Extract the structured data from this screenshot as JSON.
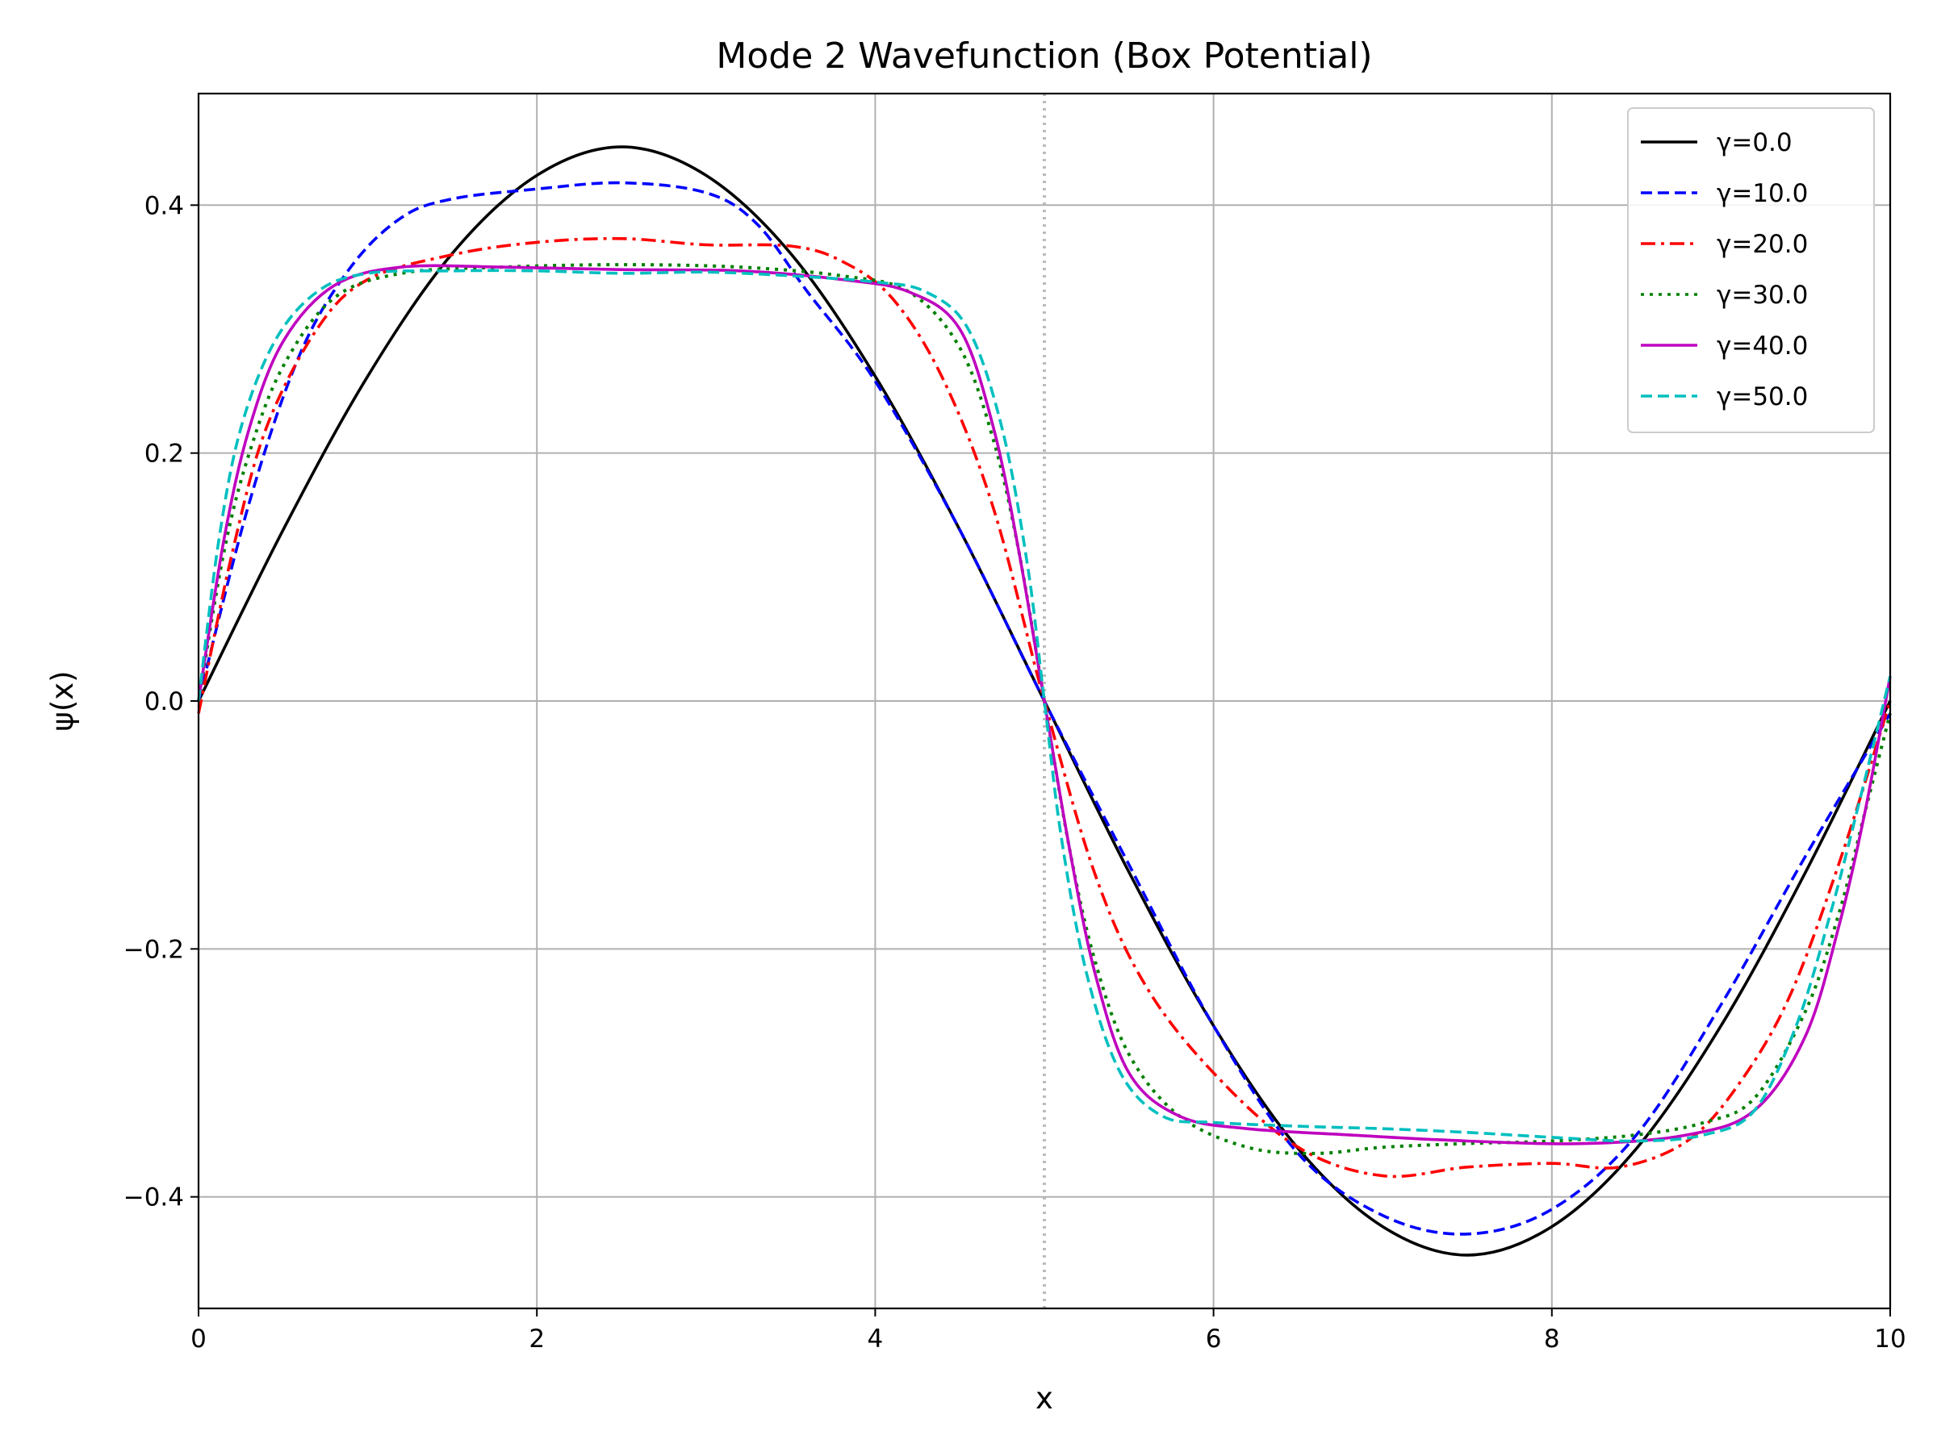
{
  "chart_data": {
    "type": "line",
    "title": "Mode 2 Wavefunction (Box Potential)",
    "xlabel": "x",
    "ylabel": "ψ(x)",
    "xlim": [
      0,
      10
    ],
    "ylim": [
      -0.49,
      0.49
    ],
    "xticks": [
      0,
      2,
      4,
      6,
      8,
      10
    ],
    "xtick_labels": [
      "0",
      "2",
      "4",
      "6",
      "8",
      "10"
    ],
    "yticks": [
      -0.4,
      -0.2,
      0.0,
      0.2,
      0.4
    ],
    "ytick_labels": [
      "−0.4",
      "−0.2",
      "0.0",
      "0.2",
      "0.4"
    ],
    "grid": true,
    "legend_position": "top-right",
    "reference_line": {
      "x": 5.0,
      "style": "dotted",
      "color": "#bbbbbb"
    },
    "series": [
      {
        "name": "γ=0.0",
        "color": "#000000",
        "dash": "solid",
        "x": [
          0,
          0.5,
          1.0,
          1.5,
          2.0,
          2.5,
          3.0,
          3.5,
          4.0,
          4.5,
          5.0,
          5.5,
          6.0,
          6.5,
          7.0,
          7.5,
          8.0,
          8.5,
          9.0,
          9.5,
          10.0
        ],
        "y": [
          0,
          0.138,
          0.262,
          0.361,
          0.424,
          0.447,
          0.424,
          0.361,
          0.262,
          0.138,
          0.0,
          -0.138,
          -0.262,
          -0.361,
          -0.424,
          -0.447,
          -0.424,
          -0.361,
          -0.262,
          -0.138,
          0
        ]
      },
      {
        "name": "γ=10.0",
        "color": "#0000ff",
        "dash": "dashed",
        "x": [
          0,
          0.3,
          0.6,
          0.9,
          1.2,
          1.5,
          2.0,
          2.5,
          3.0,
          3.3,
          3.6,
          4.0,
          4.5,
          5.0,
          5.5,
          6.0,
          6.5,
          7.0,
          7.5,
          8.0,
          8.5,
          9.0,
          9.5,
          10.0
        ],
        "y": [
          0,
          0.16,
          0.28,
          0.35,
          0.39,
          0.405,
          0.413,
          0.418,
          0.41,
          0.385,
          0.33,
          0.258,
          0.138,
          0.0,
          -0.132,
          -0.262,
          -0.365,
          -0.415,
          -0.43,
          -0.41,
          -0.35,
          -0.245,
          -0.125,
          -0.01
        ]
      },
      {
        "name": "γ=20.0",
        "color": "#ff0000",
        "dash": "dashdot",
        "x": [
          0,
          0.2,
          0.4,
          0.7,
          1.0,
          1.5,
          2.0,
          2.5,
          3.0,
          3.5,
          3.8,
          4.1,
          4.4,
          4.7,
          5.0,
          5.3,
          5.6,
          6.0,
          6.5,
          7.0,
          7.5,
          8.0,
          8.4,
          8.8,
          9.1,
          9.4,
          9.7,
          10.0
        ],
        "y": [
          -0.01,
          0.12,
          0.22,
          0.3,
          0.34,
          0.36,
          0.37,
          0.373,
          0.368,
          0.367,
          0.355,
          0.325,
          0.26,
          0.155,
          0.0,
          -0.14,
          -0.23,
          -0.3,
          -0.36,
          -0.383,
          -0.376,
          -0.373,
          -0.376,
          -0.355,
          -0.31,
          -0.24,
          -0.13,
          0
        ]
      },
      {
        "name": "γ=30.0",
        "color": "#008000",
        "dash": "dotted",
        "x": [
          0,
          0.15,
          0.3,
          0.5,
          0.8,
          1.2,
          1.8,
          2.5,
          3.2,
          3.8,
          4.2,
          4.5,
          4.7,
          4.85,
          5.0,
          5.15,
          5.3,
          5.5,
          5.8,
          6.2,
          6.6,
          7.0,
          7.5,
          8.0,
          8.5,
          8.9,
          9.2,
          9.5,
          9.7,
          9.85,
          10.0
        ],
        "y": [
          0,
          0.12,
          0.2,
          0.27,
          0.325,
          0.345,
          0.35,
          0.352,
          0.35,
          0.343,
          0.33,
          0.285,
          0.21,
          0.12,
          0.0,
          -0.12,
          -0.21,
          -0.285,
          -0.335,
          -0.36,
          -0.365,
          -0.36,
          -0.357,
          -0.355,
          -0.35,
          -0.34,
          -0.32,
          -0.25,
          -0.17,
          -0.09,
          -0.01
        ]
      },
      {
        "name": "γ=40.0",
        "color": "#bf00bf",
        "dash": "solid",
        "x": [
          0,
          0.15,
          0.3,
          0.5,
          0.8,
          1.2,
          1.8,
          2.5,
          3.2,
          3.8,
          4.2,
          4.5,
          4.7,
          4.85,
          5.0,
          5.15,
          5.3,
          5.5,
          5.8,
          6.2,
          6.8,
          7.5,
          8.2,
          8.8,
          9.2,
          9.5,
          9.7,
          9.85,
          10.0
        ],
        "y": [
          0,
          0.13,
          0.22,
          0.29,
          0.335,
          0.35,
          0.35,
          0.348,
          0.347,
          0.34,
          0.33,
          0.3,
          0.22,
          0.12,
          0.0,
          -0.12,
          -0.22,
          -0.3,
          -0.335,
          -0.345,
          -0.35,
          -0.355,
          -0.357,
          -0.35,
          -0.33,
          -0.27,
          -0.18,
          -0.09,
          0.02
        ]
      },
      {
        "name": "γ=50.0",
        "color": "#00bfbf",
        "dash": "dashed",
        "x": [
          0,
          0.12,
          0.25,
          0.45,
          0.7,
          1.0,
          1.5,
          2.0,
          2.5,
          3.0,
          3.5,
          4.0,
          4.3,
          4.55,
          4.75,
          4.9,
          5.0,
          5.1,
          5.25,
          5.45,
          5.7,
          6.0,
          6.5,
          7.0,
          7.5,
          8.0,
          8.5,
          8.9,
          9.2,
          9.45,
          9.65,
          9.82,
          10.0
        ],
        "y": [
          0,
          0.13,
          0.22,
          0.29,
          0.33,
          0.345,
          0.347,
          0.347,
          0.345,
          0.346,
          0.343,
          0.338,
          0.33,
          0.3,
          0.22,
          0.11,
          0.0,
          -0.11,
          -0.22,
          -0.3,
          -0.335,
          -0.34,
          -0.343,
          -0.345,
          -0.348,
          -0.352,
          -0.355,
          -0.35,
          -0.33,
          -0.26,
          -0.17,
          -0.08,
          0.02
        ]
      }
    ]
  }
}
